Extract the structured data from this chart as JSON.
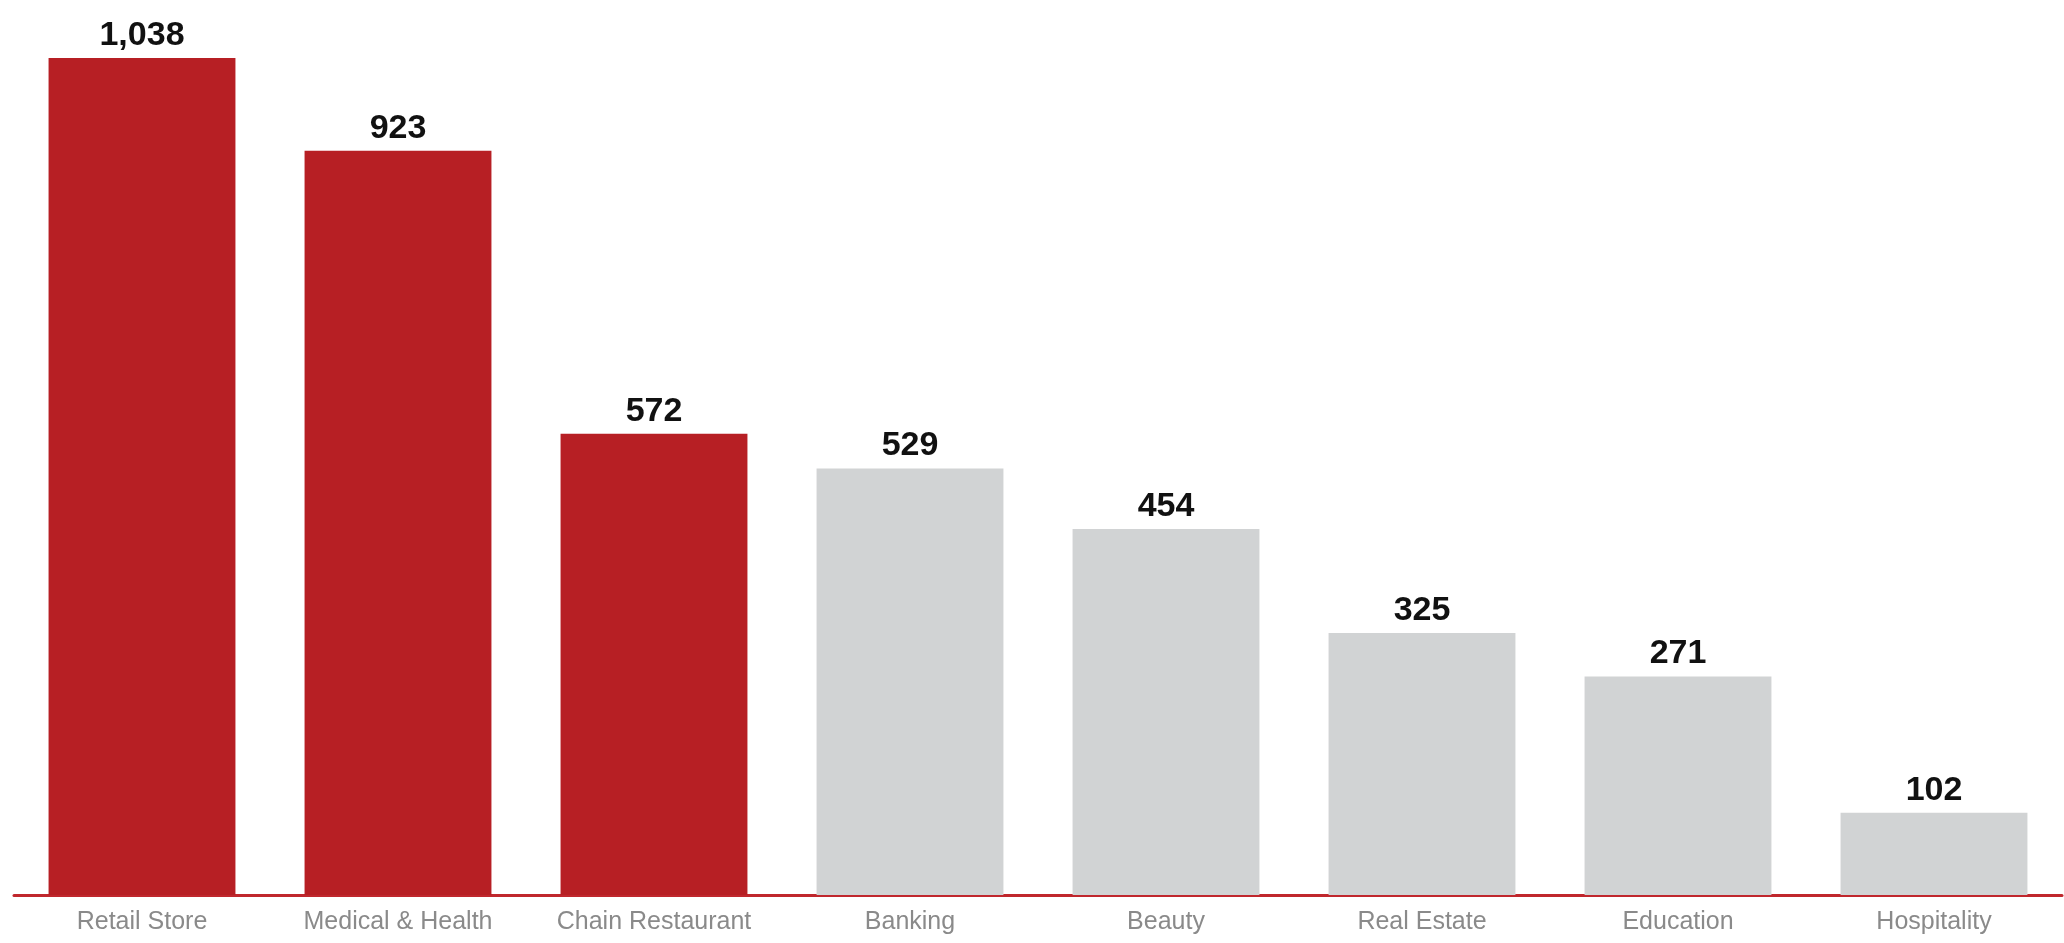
{
  "chart_data": {
    "type": "bar",
    "categories": [
      "Retail Store",
      "Medical & Health",
      "Chain Restaurant",
      "Banking",
      "Beauty",
      "Real Estate",
      "Education",
      "Hospitality"
    ],
    "values": [
      1038,
      923,
      572,
      529,
      454,
      325,
      271,
      102
    ],
    "colors": [
      "#b71f24",
      "#b71f24",
      "#b71f24",
      "#d1d3d4",
      "#d1d3d4",
      "#d1d3d4",
      "#d1d3d4",
      "#d1d3d4"
    ],
    "value_labels": [
      "1,038",
      "923",
      "572",
      "529",
      "454",
      "325",
      "271",
      "102"
    ],
    "tick_labels": "x"
  }
}
